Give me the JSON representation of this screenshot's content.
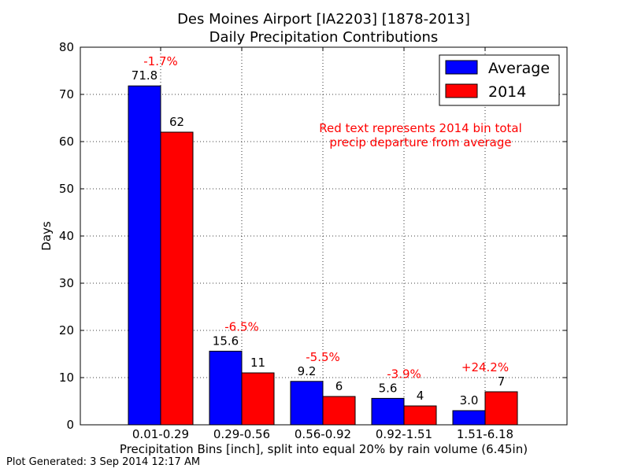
{
  "chart_data": {
    "type": "bar",
    "title": "Des Moines Airport [IA2203] [1878-2013]",
    "subtitle": "Daily Precipitation Contributions",
    "xlabel": "Precipitation Bins [inch], split into equal 20% by rain volume (6.45in)",
    "ylabel": "Days",
    "ylim": [
      0,
      80
    ],
    "yticks": [
      "0",
      "10",
      "20",
      "30",
      "40",
      "50",
      "60",
      "70",
      "80"
    ],
    "categories": [
      "0.01-0.29",
      "0.29-0.56",
      "0.56-0.92",
      "0.92-1.51",
      "1.51-6.18"
    ],
    "series": [
      {
        "name": "Average",
        "color": "#0000ff",
        "values": [
          71.8,
          15.6,
          9.2,
          5.6,
          3.0
        ],
        "labels": [
          "71.8",
          "15.6",
          "9.2",
          "5.6",
          "3.0"
        ]
      },
      {
        "name": "2014",
        "color": "#ff0000",
        "values": [
          62,
          11,
          6,
          4,
          7
        ],
        "labels": [
          "62",
          "11",
          "6",
          "4",
          "7"
        ]
      }
    ],
    "departures": [
      "-1.7%",
      "-6.5%",
      "-5.5%",
      "-3.9%",
      "+24.2%"
    ],
    "annotation": {
      "line1": "Red text represents 2014 bin total",
      "line2": "precip departure from average"
    },
    "grid": true,
    "legend_position": "top-right"
  },
  "footer": "Plot Generated: 3 Sep 2014 12:17 AM"
}
